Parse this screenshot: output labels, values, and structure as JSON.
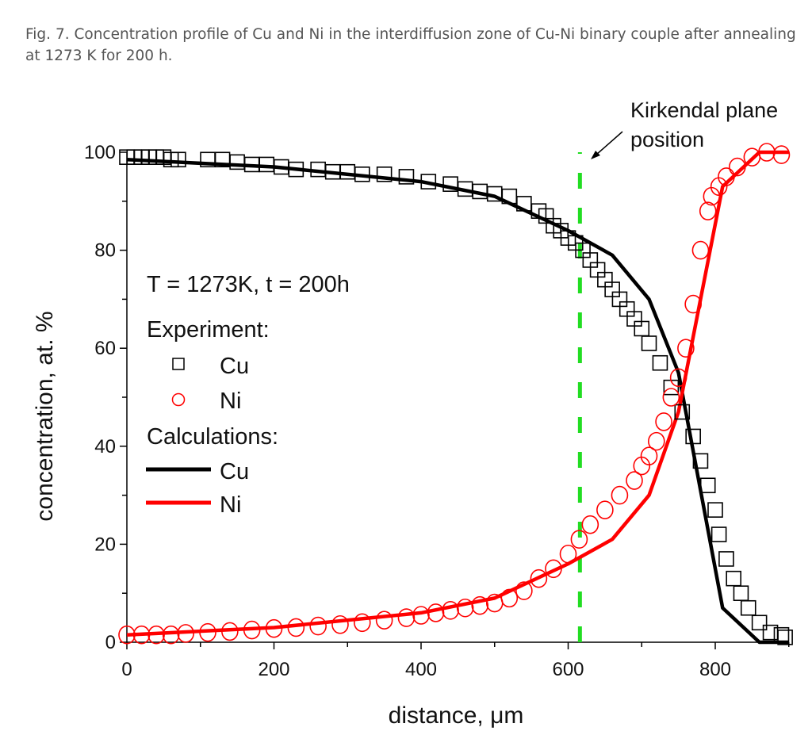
{
  "caption": "Fig. 7. Concentration profile of Cu and Ni in the interdiffusion zone of Cu-Ni binary couple after annealing at 1273 K for 200 h.",
  "chart_data": {
    "type": "scatter+line",
    "xlabel": "distance, μm",
    "ylabel": "concentration, at. %",
    "xlim": [
      0,
      900
    ],
    "ylim": [
      0,
      100
    ],
    "xticks": [
      0,
      200,
      400,
      600,
      800
    ],
    "yticks": [
      0,
      20,
      40,
      60,
      80,
      100
    ],
    "grid": false,
    "annotation": "T = 1273K, t = 200h",
    "kirkendall": {
      "x": 616,
      "label_line1": "Kirkendal plane",
      "label_line2": "position",
      "color": "#22dd22"
    },
    "legend": {
      "placement": "left",
      "experiment_title": "Experiment:",
      "calc_title": "Calculations:"
    },
    "series": [
      {
        "name": "Cu",
        "kind": "experiment",
        "marker": "square",
        "color": "#000000",
        "x": [
          0,
          10,
          20,
          30,
          40,
          50,
          60,
          70,
          110,
          130,
          150,
          170,
          190,
          210,
          230,
          260,
          280,
          300,
          320,
          350,
          380,
          410,
          440,
          460,
          480,
          500,
          520,
          540,
          560,
          570,
          580,
          590,
          600,
          610,
          620,
          630,
          640,
          650,
          660,
          670,
          680,
          690,
          700,
          710,
          725,
          740,
          755,
          770,
          780,
          790,
          800,
          805,
          815,
          825,
          835,
          845,
          860,
          875,
          890,
          895
        ],
        "y": [
          99,
          99,
          99,
          99,
          99,
          99,
          98.5,
          98.5,
          98.5,
          98.5,
          98,
          97.5,
          97.5,
          97,
          96.5,
          96.5,
          96,
          96,
          95.5,
          95.5,
          95,
          94,
          93.5,
          92.5,
          92,
          91.5,
          91,
          89.5,
          88,
          87,
          85,
          84,
          82.5,
          81.5,
          80,
          78,
          76,
          74,
          72,
          70,
          68,
          66,
          64,
          61,
          57,
          52,
          47,
          42,
          37,
          32,
          27,
          22,
          17,
          13,
          10,
          7,
          4,
          2,
          1.5,
          1
        ]
      },
      {
        "name": "Ni",
        "kind": "experiment",
        "marker": "circle",
        "color": "#ff0000",
        "x": [
          0,
          20,
          40,
          60,
          80,
          110,
          140,
          170,
          200,
          230,
          260,
          290,
          320,
          350,
          380,
          400,
          420,
          440,
          460,
          480,
          500,
          520,
          540,
          560,
          580,
          600,
          615,
          630,
          650,
          670,
          690,
          700,
          710,
          720,
          730,
          740,
          750,
          760,
          770,
          780,
          790,
          795,
          805,
          815,
          830,
          850,
          870,
          890
        ],
        "y": [
          1.5,
          1.5,
          1.5,
          1.5,
          1.8,
          2,
          2.2,
          2.5,
          2.8,
          3,
          3.3,
          3.6,
          4,
          4.5,
          5,
          5.5,
          6,
          6.5,
          7,
          7.5,
          8,
          9,
          10.5,
          13,
          15,
          18,
          21,
          24,
          27,
          30,
          33,
          36,
          38,
          41,
          45,
          50,
          54,
          60,
          69,
          80,
          88,
          91,
          93,
          95,
          97,
          99,
          100,
          99.5
        ]
      },
      {
        "name": "Cu",
        "kind": "calculation",
        "color": "#000000",
        "x": [
          0,
          200,
          400,
          500,
          600,
          660,
          710,
          750,
          810,
          860,
          900
        ],
        "y": [
          98.5,
          97,
          94,
          91,
          84,
          79,
          70,
          55,
          7,
          0,
          0
        ]
      },
      {
        "name": "Ni",
        "kind": "calculation",
        "color": "#ff0000",
        "x": [
          0,
          200,
          400,
          500,
          600,
          660,
          710,
          750,
          810,
          860,
          900
        ],
        "y": [
          1.5,
          3,
          6,
          9,
          16,
          21,
          30,
          47,
          93,
          100,
          100
        ]
      }
    ]
  }
}
